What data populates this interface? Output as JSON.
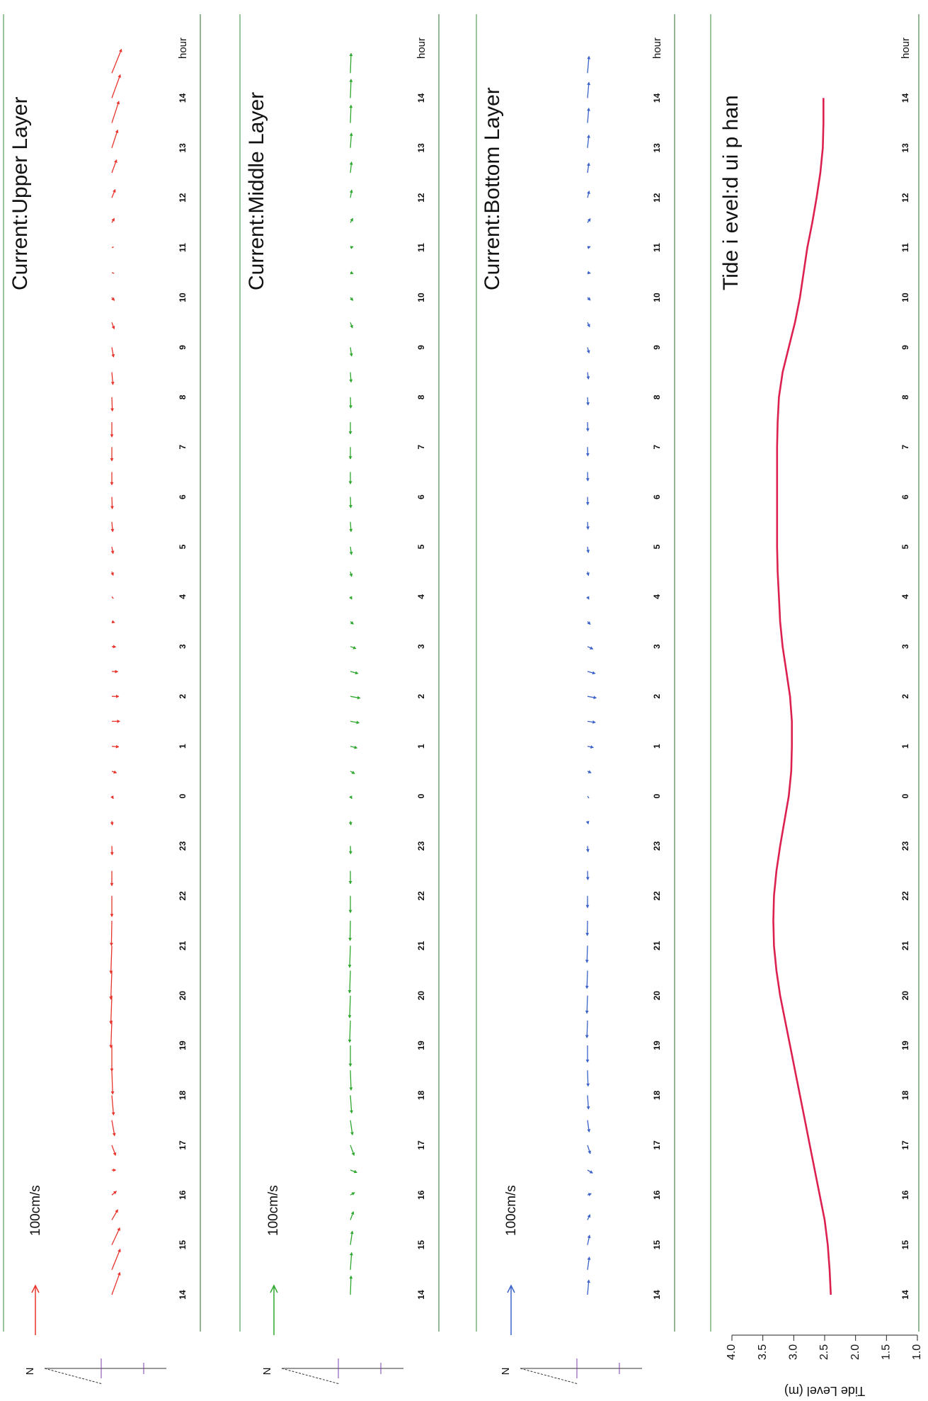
{
  "figure": {
    "x_unit_label": "hour",
    "scale_label": "100cm/s",
    "north_label": "N"
  },
  "chart_data": [
    {
      "type": "vector",
      "title": "Current:Upper Layer",
      "color": "#e8342c",
      "xlabel": "hour",
      "x_ticks": [
        "14",
        "15",
        "16",
        "17",
        "18",
        "19",
        "20",
        "21",
        "22",
        "23",
        "0",
        "1",
        "2",
        "3",
        "4",
        "5",
        "6",
        "7",
        "8",
        "9",
        "10",
        "11",
        "12",
        "13",
        "14",
        "hour"
      ],
      "xlim_hours": [
        0,
        25
      ],
      "scale_label": "100cm/s",
      "scale_speed_cms": 100,
      "series": [
        {
          "hours": [
            0,
            0.5,
            1,
            1.5,
            2,
            2.5,
            3,
            3.5,
            4,
            4.5,
            5,
            5.5,
            6,
            6.5,
            7,
            7.5,
            8,
            8.5,
            9,
            9.5,
            10,
            10.5,
            11,
            11.5,
            12,
            12.5,
            13,
            13.5,
            14,
            14.5,
            15,
            15.5,
            16,
            16.5,
            17,
            17.5,
            18,
            18.5,
            19,
            19.5,
            20,
            20.5,
            21,
            21.5,
            22,
            22.5,
            23,
            23.5,
            24,
            24.5
          ],
          "speed_cms": [
            48,
            45,
            38,
            24,
            12,
            8,
            22,
            32,
            40,
            48,
            52,
            55,
            57,
            58,
            56,
            50,
            42,
            30,
            18,
            8,
            6,
            10,
            14,
            16,
            14,
            12,
            8,
            6,
            5,
            8,
            14,
            20,
            24,
            26,
            28,
            30,
            28,
            25,
            20,
            14,
            8,
            5,
            4,
            10,
            18,
            28,
            38,
            46,
            50,
            52
          ],
          "direction_deg": [
            110,
            112,
            115,
            120,
            140,
            180,
            250,
            260,
            265,
            268,
            270,
            272,
            272,
            272,
            272,
            271,
            270,
            270,
            268,
            262,
            240,
            200,
            185,
            180,
            180,
            182,
            185,
            200,
            230,
            250,
            260,
            265,
            268,
            270,
            270,
            270,
            268,
            265,
            260,
            250,
            230,
            200,
            160,
            120,
            112,
            110,
            108,
            108,
            110,
            112
          ]
        }
      ]
    },
    {
      "type": "vector",
      "title": "Current:Middle Layer",
      "color": "#2fa82f",
      "xlabel": "hour",
      "x_ticks": [
        "14",
        "15",
        "16",
        "17",
        "18",
        "19",
        "20",
        "21",
        "22",
        "23",
        "0",
        "1",
        "2",
        "3",
        "4",
        "5",
        "6",
        "7",
        "8",
        "9",
        "10",
        "11",
        "12",
        "13",
        "14",
        "hour"
      ],
      "xlim_hours": [
        0,
        25
      ],
      "scale_label": "100cm/s",
      "scale_speed_cms": 100,
      "series": [
        {
          "hours": [
            0,
            0.5,
            1,
            1.5,
            2,
            2.5,
            3,
            3.5,
            4,
            4.5,
            5,
            5.5,
            6,
            6.5,
            7,
            7.5,
            8,
            8.5,
            9,
            9.5,
            10,
            10.5,
            11,
            11.5,
            12,
            12.5,
            13,
            13.5,
            14,
            14.5,
            15,
            15.5,
            16,
            16.5,
            17,
            17.5,
            18,
            18.5,
            19,
            19.5,
            20,
            20.5,
            21,
            21.5,
            22,
            22.5,
            23,
            23.5,
            24,
            24.5
          ],
          "speed_cms": [
            38,
            35,
            28,
            18,
            10,
            14,
            22,
            30,
            36,
            40,
            42,
            44,
            45,
            45,
            44,
            40,
            34,
            26,
            16,
            8,
            6,
            10,
            14,
            18,
            20,
            16,
            12,
            8,
            6,
            10,
            16,
            20,
            22,
            24,
            24,
            24,
            22,
            20,
            18,
            12,
            8,
            6,
            6,
            10,
            16,
            22,
            30,
            36,
            38,
            40
          ],
          "direction_deg": [
            92,
            94,
            98,
            110,
            150,
            200,
            250,
            262,
            266,
            268,
            270,
            272,
            272,
            272,
            272,
            271,
            270,
            270,
            268,
            262,
            240,
            210,
            195,
            190,
            190,
            195,
            200,
            220,
            240,
            255,
            262,
            266,
            268,
            270,
            270,
            270,
            268,
            266,
            262,
            250,
            230,
            200,
            160,
            120,
            100,
            96,
            94,
            92,
            92,
            92
          ]
        }
      ]
    },
    {
      "type": "vector",
      "title": "Current:Bottom Layer",
      "color": "#3b62c8",
      "xlabel": "hour",
      "x_ticks": [
        "14",
        "15",
        "16",
        "17",
        "18",
        "19",
        "20",
        "21",
        "22",
        "23",
        "0",
        "1",
        "2",
        "3",
        "4",
        "5",
        "6",
        "7",
        "8",
        "9",
        "10",
        "11",
        "12",
        "13",
        "14",
        "hour"
      ],
      "xlim_hours": [
        0,
        25
      ],
      "scale_label": "100cm/s",
      "scale_speed_cms": 100,
      "series": [
        {
          "hours": [
            0,
            0.5,
            1,
            1.5,
            2,
            2.5,
            3,
            3.5,
            4,
            4.5,
            5,
            5.5,
            6,
            6.5,
            7,
            7.5,
            8,
            8.5,
            9,
            9.5,
            10,
            10.5,
            11,
            11.5,
            12,
            12.5,
            13,
            13.5,
            14,
            14.5,
            15,
            15.5,
            16,
            16.5,
            17,
            17.5,
            18,
            18.5,
            19,
            19.5,
            20,
            20.5,
            21,
            21.5,
            22,
            22.5,
            23,
            23.5,
            24,
            24.5
          ],
          "speed_cms": [
            30,
            26,
            20,
            12,
            8,
            12,
            18,
            24,
            28,
            32,
            34,
            35,
            36,
            36,
            34,
            30,
            24,
            18,
            12,
            6,
            5,
            8,
            12,
            16,
            18,
            16,
            12,
            8,
            6,
            8,
            12,
            15,
            16,
            18,
            18,
            18,
            16,
            14,
            12,
            10,
            8,
            6,
            6,
            10,
            14,
            20,
            26,
            30,
            32,
            34
          ],
          "direction_deg": [
            95,
            98,
            102,
            115,
            160,
            210,
            252,
            262,
            266,
            268,
            270,
            272,
            272,
            272,
            272,
            271,
            270,
            268,
            265,
            255,
            235,
            205,
            192,
            188,
            190,
            195,
            205,
            225,
            242,
            255,
            262,
            266,
            268,
            268,
            268,
            268,
            266,
            262,
            255,
            245,
            225,
            195,
            160,
            125,
            104,
            98,
            96,
            95,
            95,
            95
          ]
        }
      ]
    },
    {
      "type": "line",
      "title": "Tide i evel:d ui p han",
      "color": "#dc2050",
      "xlabel": "hour",
      "ylabel": "Tide Level (m)",
      "x_ticks": [
        "14",
        "15",
        "16",
        "17",
        "18",
        "19",
        "20",
        "21",
        "22",
        "23",
        "0",
        "1",
        "2",
        "3",
        "4",
        "5",
        "6",
        "7",
        "8",
        "9",
        "10",
        "11",
        "12",
        "13",
        "14",
        "hour"
      ],
      "xlim_hours": [
        0,
        25
      ],
      "ylim": [
        1.0,
        4.0
      ],
      "y_ticks": [
        "4.0",
        "3.5",
        "3.0",
        "2.5",
        "2.0",
        "1.5",
        "1.0"
      ],
      "series": [
        {
          "hours": [
            0,
            0.5,
            1,
            1.5,
            2,
            2.5,
            3,
            3.5,
            4,
            4.5,
            5,
            5.5,
            6,
            6.5,
            7,
            7.5,
            8,
            8.5,
            9,
            9.5,
            10,
            10.5,
            11,
            11.5,
            12,
            12.5,
            13,
            13.5,
            14,
            14.5,
            15,
            15.5,
            16,
            16.5,
            17,
            17.5,
            18,
            18.5,
            19,
            19.5,
            20,
            20.5,
            21,
            21.5,
            22,
            22.5,
            23,
            23.5,
            24
          ],
          "values": [
            2.4,
            2.42,
            2.45,
            2.5,
            2.58,
            2.66,
            2.74,
            2.82,
            2.9,
            2.98,
            3.06,
            3.14,
            3.22,
            3.28,
            3.32,
            3.33,
            3.32,
            3.28,
            3.22,
            3.15,
            3.08,
            3.04,
            3.03,
            3.03,
            3.06,
            3.12,
            3.18,
            3.22,
            3.24,
            3.26,
            3.27,
            3.27,
            3.27,
            3.27,
            3.27,
            3.26,
            3.24,
            3.18,
            3.08,
            2.98,
            2.9,
            2.84,
            2.78,
            2.7,
            2.63,
            2.57,
            2.53,
            2.52,
            2.52
          ]
        }
      ]
    }
  ]
}
